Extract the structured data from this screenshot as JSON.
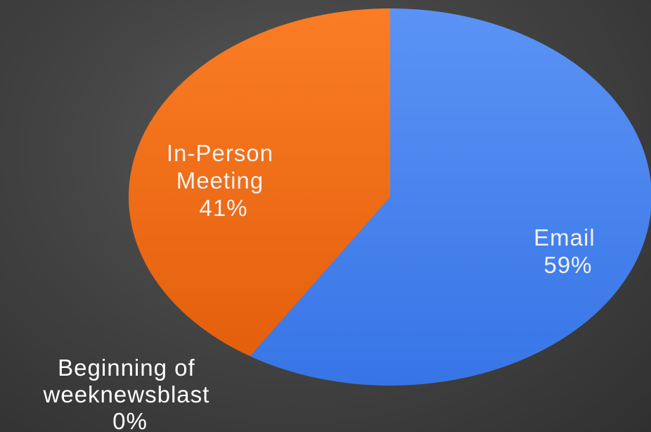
{
  "chart_data": {
    "type": "pie",
    "slices": [
      {
        "label": "Email",
        "value": 59,
        "percent_label": "59%",
        "color": "#4a86f0"
      },
      {
        "label": "In-Person Meeting",
        "label_lines": [
          "In-Person",
          "Meeting"
        ],
        "value": 41,
        "percent_label": "41%",
        "color": "#f56e14"
      },
      {
        "label": "Beginning of week newsblast",
        "label_lines": [
          "Beginning of",
          "weeknewsblast"
        ],
        "value": 0,
        "percent_label": "0%",
        "color": "#8a8a8a"
      }
    ],
    "title": "",
    "legend": "none",
    "background": "#444444"
  }
}
